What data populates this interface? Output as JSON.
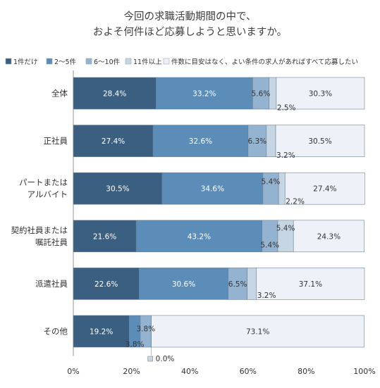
{
  "chart_data": {
    "type": "bar",
    "orientation": "horizontal",
    "stacked": true,
    "title": [
      "今回の求職活動期間の中で、",
      "およそ何件ほど応募しようと思いますか。"
    ],
    "legend_position": "top",
    "grid": false,
    "xlim": [
      0,
      100
    ],
    "x_ticks": [
      "0%",
      "20%",
      "40%",
      "60%",
      "80%",
      "100%"
    ],
    "categories": [
      [
        "全体"
      ],
      [
        "正社員"
      ],
      [
        "パートまたは",
        "アルバイト"
      ],
      [
        "契約社員または",
        "嘱託社員"
      ],
      [
        "派遣社員"
      ],
      [
        "その他"
      ]
    ],
    "series": [
      {
        "name": "1件だけ",
        "color": "#3a5f80",
        "text_color": "#ffffff",
        "values": [
          28.4,
          27.4,
          30.5,
          21.6,
          22.6,
          19.2
        ],
        "labels": [
          "28.4%",
          "27.4%",
          "30.5%",
          "21.6%",
          "22.6%",
          "19.2%"
        ]
      },
      {
        "name": "2～5件",
        "color": "#5b8db8",
        "text_color": "#ffffff",
        "values": [
          33.2,
          32.6,
          34.6,
          43.2,
          30.6,
          3.8
        ],
        "labels": [
          "33.2%",
          "32.6%",
          "34.6%",
          "43.2%",
          "30.6%",
          "3.8%"
        ]
      },
      {
        "name": "6～10件",
        "color": "#93b3d0",
        "text_color": "#333333",
        "values": [
          5.6,
          6.3,
          5.4,
          5.4,
          6.5,
          3.8
        ],
        "labels": [
          "5.6%",
          "6.3%",
          "5.4%",
          "5.4%",
          "6.5%",
          "3.8%"
        ]
      },
      {
        "name": "11件以上",
        "color": "#c6d5e4",
        "text_color": "#333333",
        "values": [
          2.5,
          3.2,
          2.2,
          5.4,
          3.2,
          0.0
        ],
        "labels": [
          "2.5%",
          "3.2%",
          "2.2%",
          "5.4%",
          "3.2%",
          "0.0%"
        ]
      },
      {
        "name": "件数に目安はなく、よい条件の求人があればすべて応募したい",
        "color": "#eef2f8",
        "text_color": "#333333",
        "values": [
          30.3,
          30.5,
          27.4,
          24.3,
          37.1,
          73.1
        ],
        "labels": [
          "30.3%",
          "30.5%",
          "27.4%",
          "24.3%",
          "37.1%",
          "73.1%"
        ]
      }
    ]
  }
}
